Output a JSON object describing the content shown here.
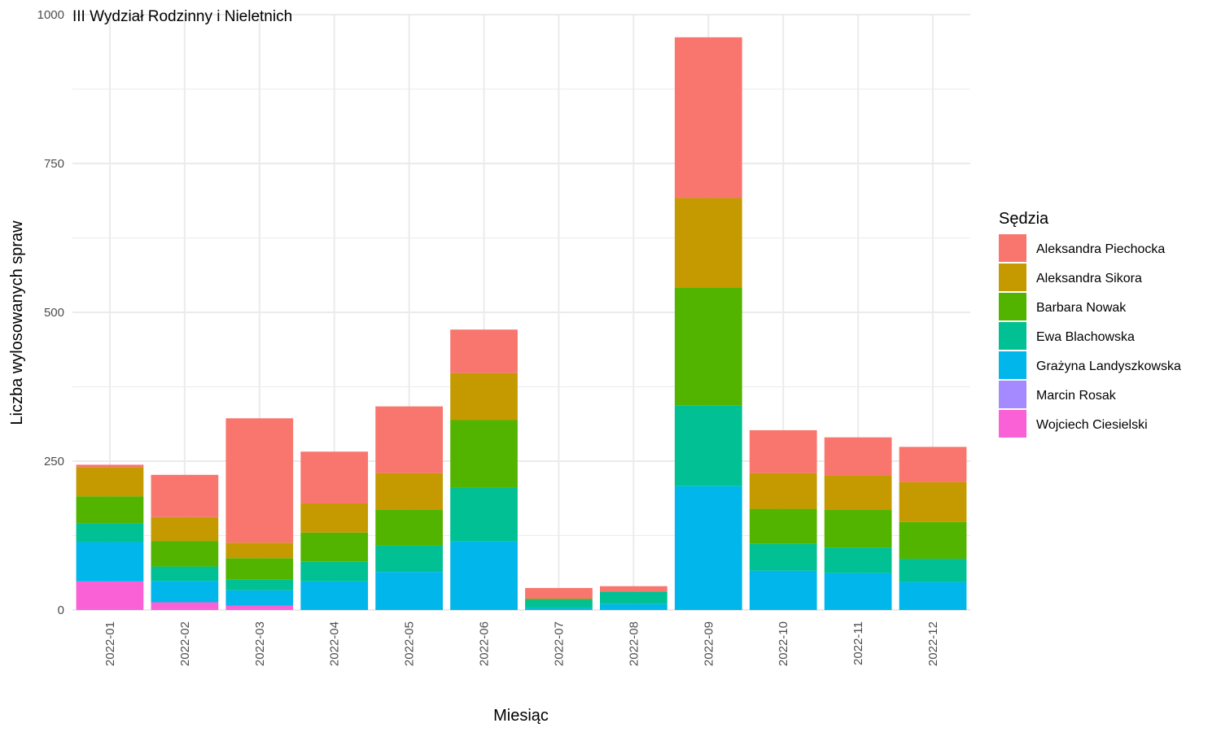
{
  "chart_data": {
    "type": "bar",
    "stacked": true,
    "title": "III Wydział Rodzinny i Nieletnich",
    "xlabel": "Miesiąc",
    "ylabel": "Liczba wylosowanych spraw",
    "ylim": [
      0,
      1000
    ],
    "yticks": [
      0,
      250,
      500,
      750,
      1000
    ],
    "grid": true,
    "legend_title": "Sędzia",
    "legend_position": "right",
    "categories": [
      "2022-01",
      "2022-02",
      "2022-03",
      "2022-04",
      "2022-05",
      "2022-06",
      "2022-07",
      "2022-08",
      "2022-09",
      "2022-10",
      "2022-11",
      "2022-12"
    ],
    "series": [
      {
        "name": "Aleksandra Piechocka",
        "color": "#F8766D",
        "values": [
          4,
          71,
          209,
          87,
          112,
          73,
          18,
          9,
          270,
          72,
          64,
          59
        ]
      },
      {
        "name": "Aleksandra Sikora",
        "color": "#C49A00",
        "values": [
          49,
          40,
          26,
          49,
          61,
          79,
          0,
          0,
          151,
          60,
          58,
          67
        ]
      },
      {
        "name": "Barbara Nowak",
        "color": "#53B400",
        "values": [
          45,
          43,
          36,
          49,
          61,
          114,
          2,
          0,
          197,
          59,
          63,
          62
        ]
      },
      {
        "name": "Ewa Blachowska",
        "color": "#00C094",
        "values": [
          32,
          24,
          18,
          33,
          44,
          90,
          14,
          21,
          136,
          45,
          43,
          39
        ]
      },
      {
        "name": "Grażyna Landyszkowska",
        "color": "#00B6EB",
        "values": [
          66,
          36,
          26,
          48,
          64,
          115,
          3,
          10,
          208,
          66,
          62,
          47
        ]
      },
      {
        "name": "Marcin Rosak",
        "color": "#A58AFF",
        "values": [
          0,
          0,
          0,
          0,
          0,
          0,
          0,
          0,
          0,
          0,
          0,
          0
        ]
      },
      {
        "name": "Wojciech Ciesielski",
        "color": "#FB61D7",
        "values": [
          48,
          13,
          7,
          0,
          0,
          0,
          0,
          0,
          0,
          0,
          0,
          0
        ]
      }
    ]
  }
}
